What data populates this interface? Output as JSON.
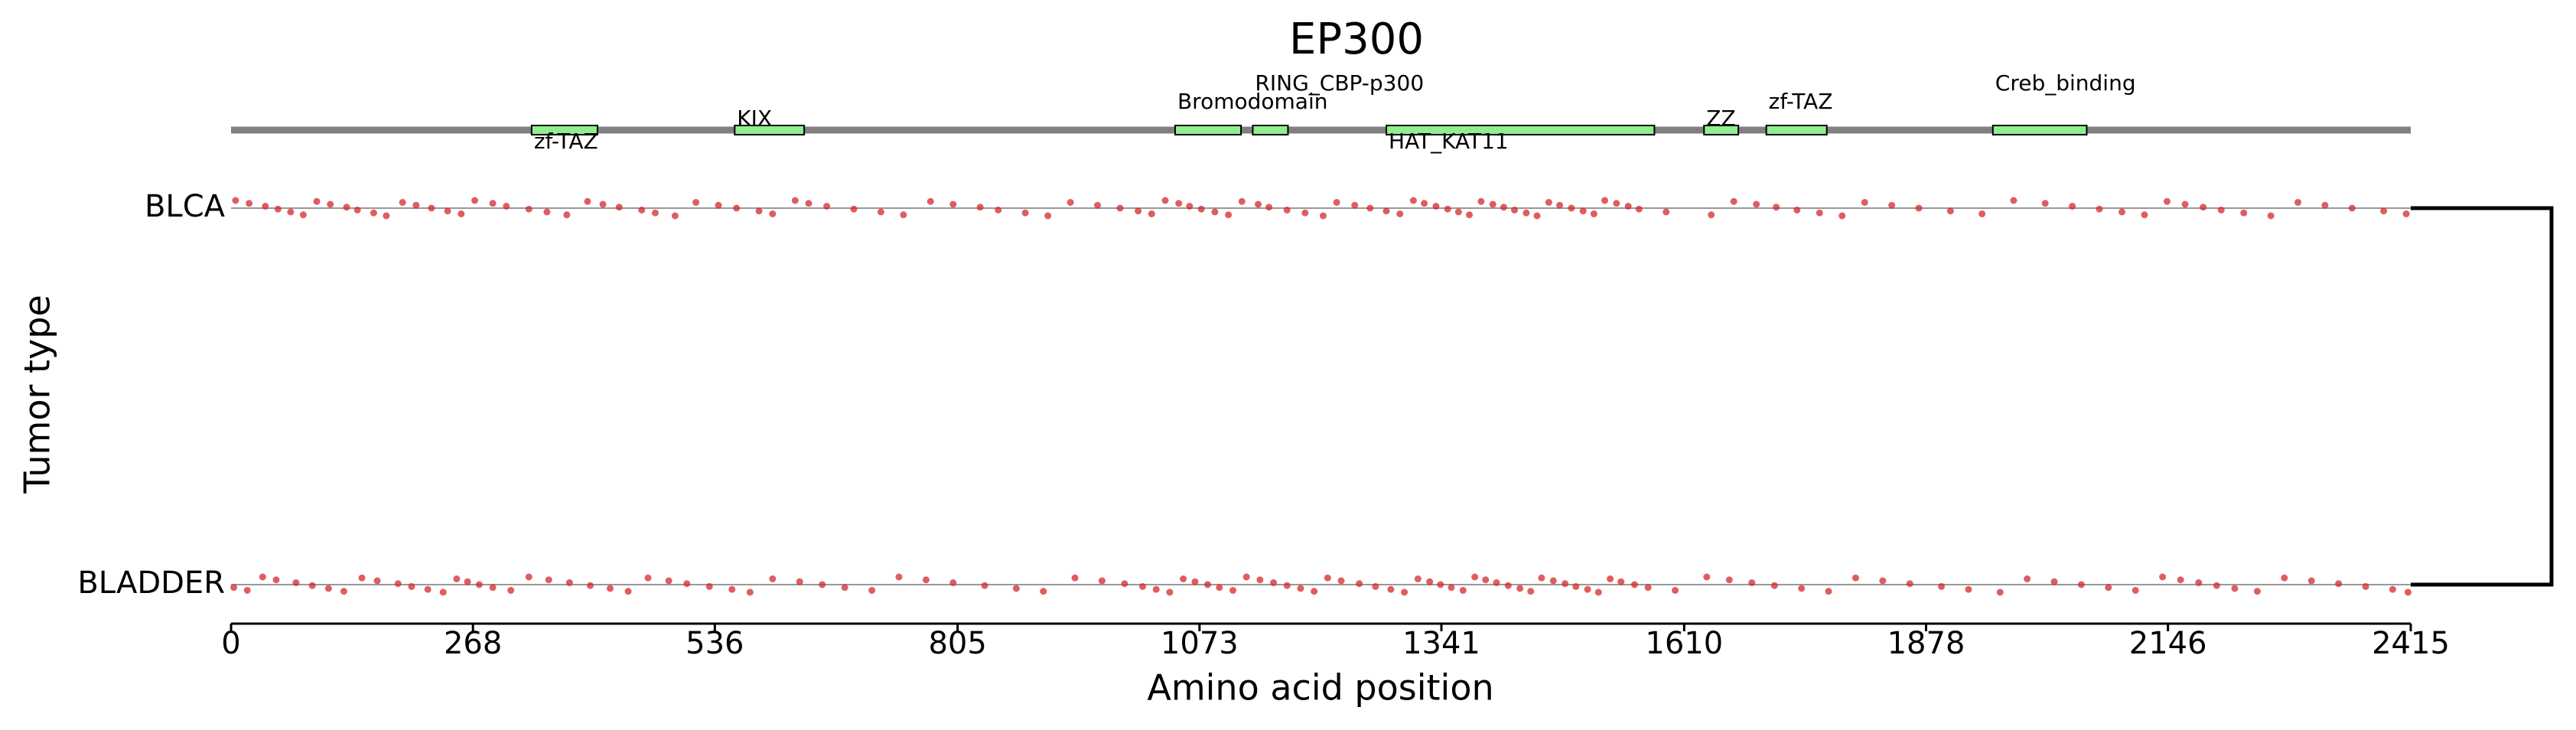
{
  "chart_data": {
    "type": "strip",
    "title": "EP300",
    "xlabel": "Amino acid position",
    "ylabel": "Tumor type",
    "xlim": [
      0,
      2415
    ],
    "xticks": [
      0,
      268,
      536,
      805,
      1073,
      1341,
      1610,
      1878,
      2146,
      2415
    ],
    "domain_color": "#90ee90",
    "domains": [
      {
        "name": "zf-TAZ",
        "start": 333,
        "end": 406
      },
      {
        "name": "KIX",
        "start": 558,
        "end": 635
      },
      {
        "name": "Bromodomain",
        "start": 1046,
        "end": 1119
      },
      {
        "name": "RING_CBP-p300",
        "start": 1132,
        "end": 1171
      },
      {
        "name": "HAT_KAT11",
        "start": 1280,
        "end": 1577
      },
      {
        "name": "ZZ",
        "start": 1632,
        "end": 1670
      },
      {
        "name": "zf-TAZ",
        "start": 1701,
        "end": 1768
      },
      {
        "name": "Creb_binding",
        "start": 1952,
        "end": 2056
      }
    ],
    "series": [
      {
        "name": "BLCA",
        "color": "#d62728",
        "values": [
          5,
          20,
          38,
          52,
          66,
          80,
          95,
          110,
          128,
          140,
          158,
          172,
          190,
          205,
          222,
          240,
          255,
          270,
          290,
          305,
          330,
          350,
          372,
          395,
          412,
          430,
          455,
          470,
          492,
          515,
          540,
          560,
          585,
          600,
          625,
          640,
          660,
          690,
          720,
          745,
          775,
          800,
          830,
          850,
          880,
          905,
          930,
          960,
          985,
          1005,
          1020,
          1035,
          1050,
          1062,
          1075,
          1090,
          1105,
          1120,
          1138,
          1150,
          1170,
          1190,
          1210,
          1225,
          1245,
          1262,
          1280,
          1295,
          1310,
          1322,
          1335,
          1348,
          1360,
          1372,
          1385,
          1398,
          1410,
          1422,
          1435,
          1447,
          1460,
          1472,
          1485,
          1498,
          1510,
          1522,
          1535,
          1548,
          1560,
          1590,
          1640,
          1665,
          1690,
          1712,
          1735,
          1760,
          1785,
          1810,
          1840,
          1870,
          1905,
          1940,
          1975,
          2010,
          2040,
          2070,
          2095,
          2120,
          2145,
          2165,
          2185,
          2205,
          2230,
          2260,
          2290,
          2320,
          2350,
          2385,
          2410
        ]
      },
      {
        "name": "BLADDER",
        "color": "#d62728",
        "values": [
          3,
          18,
          35,
          50,
          72,
          90,
          108,
          125,
          145,
          162,
          185,
          200,
          218,
          235,
          250,
          262,
          275,
          290,
          310,
          330,
          352,
          375,
          398,
          420,
          440,
          462,
          485,
          505,
          530,
          555,
          575,
          600,
          630,
          655,
          680,
          710,
          740,
          770,
          800,
          835,
          870,
          900,
          935,
          965,
          990,
          1010,
          1025,
          1040,
          1055,
          1068,
          1082,
          1095,
          1110,
          1125,
          1140,
          1155,
          1170,
          1185,
          1200,
          1215,
          1230,
          1250,
          1268,
          1285,
          1300,
          1315,
          1328,
          1340,
          1352,
          1365,
          1378,
          1390,
          1402,
          1415,
          1428,
          1440,
          1452,
          1465,
          1478,
          1490,
          1503,
          1515,
          1528,
          1540,
          1555,
          1570,
          1600,
          1635,
          1660,
          1685,
          1710,
          1740,
          1770,
          1800,
          1830,
          1860,
          1895,
          1925,
          1960,
          1990,
          2020,
          2050,
          2080,
          2110,
          2140,
          2160,
          2180,
          2200,
          2220,
          2245,
          2275,
          2305,
          2335,
          2365,
          2395,
          2412
        ]
      }
    ]
  }
}
